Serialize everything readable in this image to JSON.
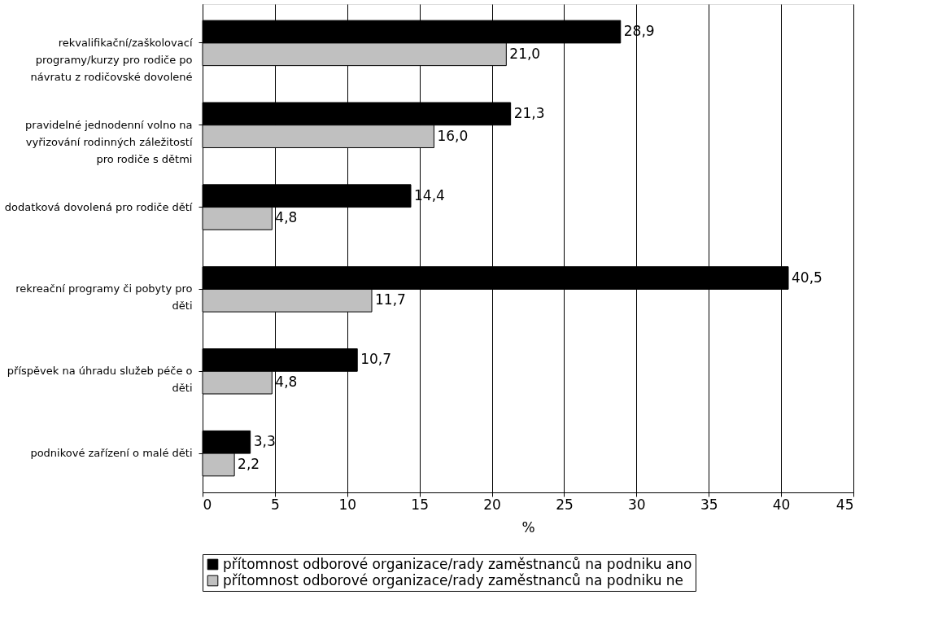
{
  "chart_data": {
    "type": "bar",
    "orientation": "horizontal",
    "xlabel": "%",
    "categories": [
      "rekvalifikační/zaškolovací programy/kurzy pro rodiče po návratu z rodičovské dovolené",
      "pravidelné jednodenní volno na vyřizování rodinných záležitostí pro rodiče s dětmi",
      "dodatková dovolená pro rodiče dětí",
      "rekreační programy či pobyty pro děti",
      "příspěvek na úhradu služeb péče o děti",
      "podnikové zařízení o malé děti"
    ],
    "series": [
      {
        "name": "přítomnost odborové organizace/rady zaměstnanců na podniku ano",
        "color": "#000000",
        "values": [
          28.9,
          21.3,
          14.4,
          40.5,
          10.7,
          3.3
        ],
        "value_labels": [
          "28,9",
          "21,3",
          "14,4",
          "40,5",
          "10,7",
          "3,3"
        ]
      },
      {
        "name": "přítomnost odborové organizace/rady zaměstnanců na podniku ne",
        "color": "#c0c0c0",
        "values": [
          21.0,
          16.0,
          4.8,
          11.7,
          4.8,
          2.2
        ],
        "value_labels": [
          "21,0",
          "16,0",
          "4,8",
          "11,7",
          "4,8",
          "2,2"
        ]
      }
    ],
    "xlim": [
      0,
      45
    ],
    "xticks": [
      0,
      5,
      10,
      15,
      20,
      25,
      30,
      35,
      40,
      45
    ],
    "grid": "x",
    "legend": "bottom"
  }
}
